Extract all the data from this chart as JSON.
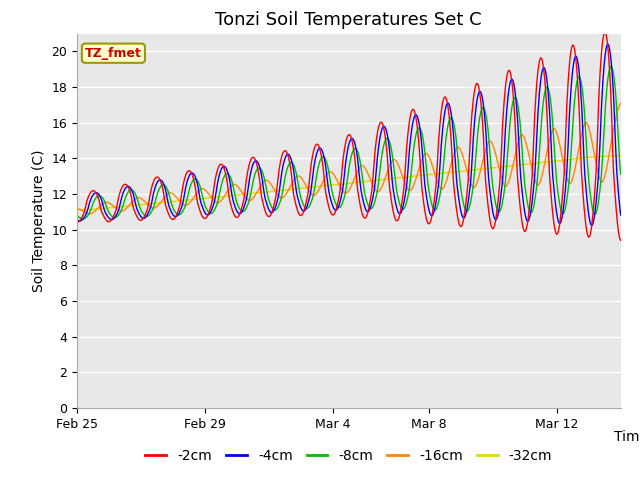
{
  "title": "Tonzi Soil Temperatures Set C",
  "xlabel": "Time",
  "ylabel": "Soil Temperature (C)",
  "ylim": [
    0,
    21
  ],
  "yticks": [
    0,
    2,
    4,
    6,
    8,
    10,
    12,
    14,
    16,
    18,
    20
  ],
  "xtick_labels": [
    "Feb 25",
    "Feb 29",
    "Mar 4",
    "Mar 8",
    "Mar 12"
  ],
  "xtick_positions": [
    0,
    4,
    8,
    11,
    15
  ],
  "xlim": [
    0,
    17
  ],
  "annotation_text": "TZ_fmet",
  "annotation_color": "#cc0000",
  "annotation_bg": "#ffffcc",
  "annotation_border": "#999900",
  "series_colors": [
    "#ff0000",
    "#0000ff",
    "#00bb00",
    "#ff8800",
    "#dddd00"
  ],
  "series_labels": [
    "-2cm",
    "-4cm",
    "-8cm",
    "-16cm",
    "-32cm"
  ],
  "fig_bg_color": "#ffffff",
  "plot_bg_color": "#e8e8e8",
  "grid_color": "#ffffff",
  "title_fontsize": 13,
  "legend_fontsize": 10,
  "axis_label_fontsize": 10,
  "tick_fontsize": 9
}
